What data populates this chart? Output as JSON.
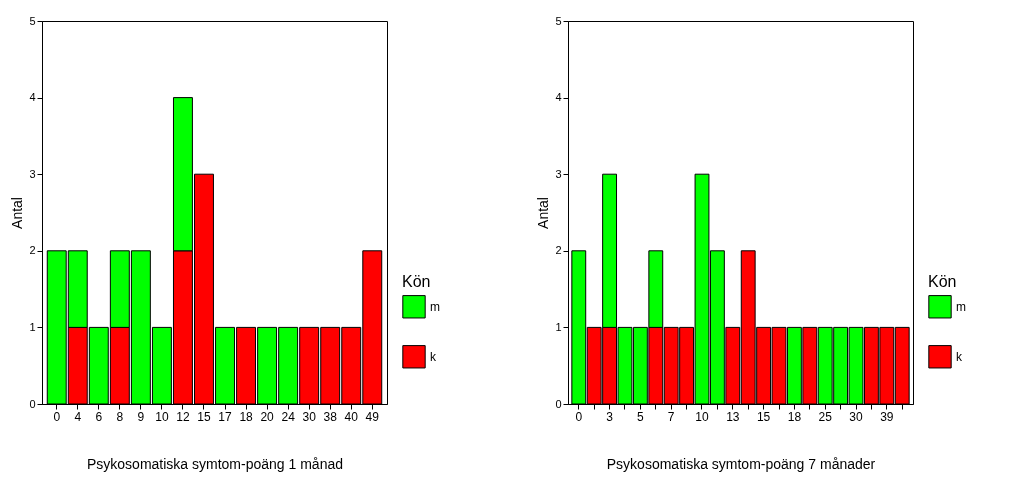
{
  "chart_data": [
    {
      "type": "bar",
      "stacked": true,
      "xlabel": "Psykosomatiska symtom-poäng 1 månad",
      "ylabel": "Antal",
      "legend_title": "Kön",
      "legend": "right",
      "ylim": [
        0,
        5
      ],
      "yticks": [
        0,
        1,
        2,
        3,
        4,
        5
      ],
      "categories": [
        "0",
        "4",
        "6",
        "8",
        "9",
        "10",
        "12",
        "15",
        "17",
        "18",
        "20",
        "24",
        "30",
        "38",
        "40",
        "49"
      ],
      "series": [
        {
          "name": "k",
          "color": "#ff0000",
          "values": [
            null,
            1,
            null,
            1,
            null,
            null,
            2,
            3,
            null,
            1,
            null,
            null,
            1,
            1,
            1,
            2
          ]
        },
        {
          "name": "m",
          "color": "#00ff00",
          "values": [
            2,
            1,
            1,
            1,
            2,
            1,
            2,
            null,
            1,
            null,
            1,
            1,
            null,
            null,
            null,
            null
          ]
        }
      ]
    },
    {
      "type": "bar",
      "stacked": true,
      "xlabel": "Psykosomatiska symtom-poäng 7 månader",
      "ylabel": "Antal",
      "legend_title": "Kön",
      "legend": "right",
      "ylim": [
        0,
        5
      ],
      "yticks": [
        0,
        1,
        2,
        3,
        4,
        5
      ],
      "categories": [
        "0",
        null,
        "3",
        null,
        "5",
        null,
        "7",
        null,
        "10",
        null,
        "13",
        null,
        "15",
        null,
        "18",
        null,
        "25",
        null,
        "30",
        null,
        "39",
        null
      ],
      "series": [
        {
          "name": "k",
          "color": "#ff0000",
          "values": [
            null,
            1,
            1,
            null,
            null,
            1,
            1,
            1,
            null,
            null,
            1,
            2,
            1,
            1,
            null,
            1,
            null,
            null,
            null,
            1,
            1,
            1
          ]
        },
        {
          "name": "m",
          "color": "#00ff00",
          "values": [
            2,
            null,
            2,
            1,
            1,
            1,
            null,
            null,
            3,
            2,
            null,
            null,
            null,
            null,
            1,
            null,
            1,
            1,
            1,
            null,
            null,
            null
          ]
        }
      ]
    }
  ]
}
